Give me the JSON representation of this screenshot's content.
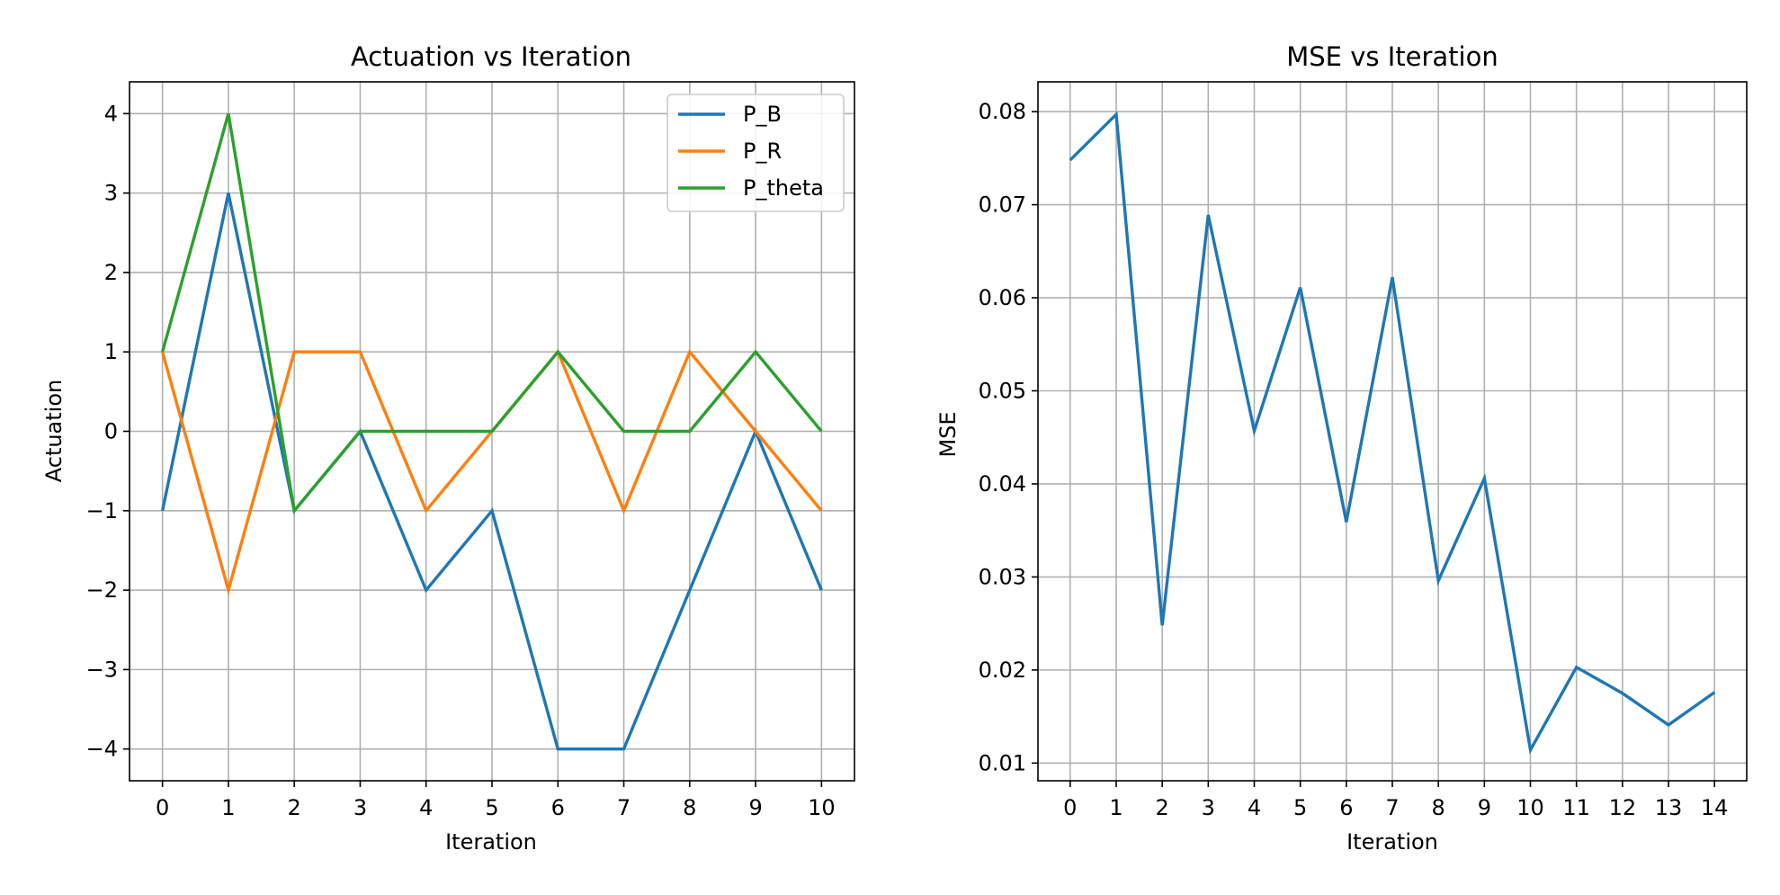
{
  "chart_data": [
    {
      "type": "line",
      "title": "Actuation vs Iteration",
      "xlabel": "Iteration",
      "ylabel": "Actuation",
      "x": [
        0,
        1,
        2,
        3,
        4,
        5,
        6,
        7,
        8,
        9,
        10
      ],
      "xticks": [
        0,
        1,
        2,
        3,
        4,
        5,
        6,
        7,
        8,
        9,
        10
      ],
      "yticks": [
        -4,
        -3,
        -2,
        -1,
        0,
        1,
        2,
        3,
        4
      ],
      "xlim": [
        -0.5,
        10.5
      ],
      "ylim": [
        -4.4,
        4.4
      ],
      "grid": true,
      "legend": "top-right",
      "series": [
        {
          "name": "P_B",
          "color": "#1f77b4",
          "values": [
            -1,
            3,
            -1,
            0,
            -2,
            -1,
            -4,
            -4,
            -2,
            0,
            -2
          ]
        },
        {
          "name": "P_R",
          "color": "#ff7f0e",
          "values": [
            1,
            -2,
            1,
            1,
            -1,
            0,
            1,
            -1,
            1,
            0,
            -1
          ]
        },
        {
          "name": "P_theta",
          "color": "#2ca02c",
          "values": [
            1,
            4,
            -1,
            0,
            0,
            0,
            1,
            0,
            0,
            1,
            0
          ]
        }
      ]
    },
    {
      "type": "line",
      "title": "MSE vs Iteration",
      "xlabel": "Iteration",
      "ylabel": "MSE",
      "x": [
        0,
        1,
        2,
        3,
        4,
        5,
        6,
        7,
        8,
        9,
        10,
        11,
        12,
        13,
        14
      ],
      "xticks": [
        0,
        1,
        2,
        3,
        4,
        5,
        6,
        7,
        8,
        9,
        10,
        11,
        12,
        13,
        14
      ],
      "yticks": [
        0.01,
        0.02,
        0.03,
        0.04,
        0.05,
        0.06,
        0.07,
        0.08
      ],
      "xlim": [
        -0.7,
        14.7
      ],
      "ylim": [
        0.0081,
        0.0832
      ],
      "grid": true,
      "series": [
        {
          "color": "#1f77b4",
          "values": [
            0.0748,
            0.0797,
            0.0248,
            0.0689,
            0.0457,
            0.0611,
            0.0359,
            0.0622,
            0.0296,
            0.0406,
            0.0114,
            0.0203,
            0.0175,
            0.0141,
            0.0176
          ]
        }
      ]
    }
  ]
}
